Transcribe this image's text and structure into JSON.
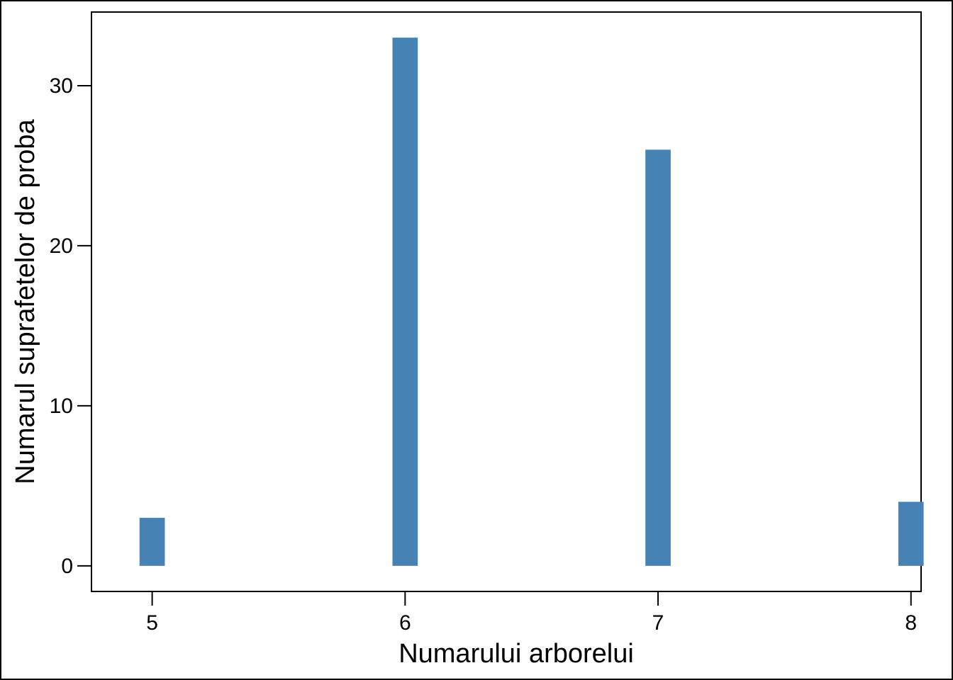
{
  "chart_data": {
    "type": "bar",
    "x": [
      5,
      6,
      7,
      8
    ],
    "values": [
      3,
      33,
      26,
      4
    ],
    "xlabel": "Numarului arborelui",
    "ylabel": "Numarul suprafetelor de proba",
    "xlim": [
      4.76,
      8.04
    ],
    "ylim": [
      -1.6,
      34.6
    ],
    "xticks": [
      5,
      6,
      7,
      8
    ],
    "yticks": [
      0,
      10,
      20,
      30
    ],
    "xtick_labels": [
      "5",
      "6",
      "7",
      "8"
    ],
    "ytick_labels": [
      "0",
      "10",
      "20",
      "30"
    ],
    "grid": false,
    "legend": "none",
    "bar_color": "#4682B4"
  }
}
